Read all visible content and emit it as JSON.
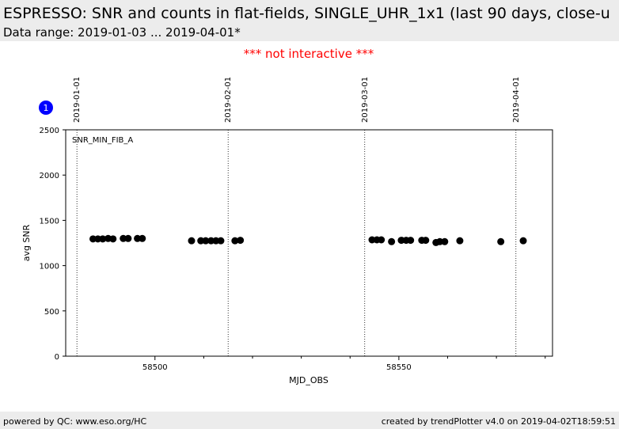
{
  "chart_data": {
    "type": "scatter",
    "title": "ESPRESSO: SNR and counts in flat-fields, SINGLE_UHR_1x1 (last 90 days, close-u",
    "subtitle": "Data range: 2019-01-03 ... 2019-04-01*",
    "notice": "*** not interactive ***",
    "badge": "1",
    "annotation": "SNR_MIN_FIB_A",
    "x_label": "MJD_OBS",
    "y_label": "avg SNR",
    "color": "#000000",
    "x": [
      58487.3,
      58488.3,
      58489.3,
      58490.4,
      58491.4,
      58493.5,
      58494.5,
      58496.4,
      58497.4,
      58507.5,
      58509.4,
      58510.4,
      58511.5,
      58512.5,
      58513.5,
      58516.4,
      58517.5,
      58544.5,
      58545.5,
      58546.4,
      58548.5,
      58550.5,
      58551.5,
      58552.4,
      58554.7,
      58555.5,
      58557.6,
      58558.4,
      58559.4,
      58562.5,
      58570.9,
      58575.5
    ],
    "values": [
      1295,
      1295,
      1295,
      1300,
      1295,
      1300,
      1300,
      1300,
      1300,
      1275,
      1275,
      1275,
      1275,
      1275,
      1275,
      1275,
      1280,
      1285,
      1285,
      1285,
      1265,
      1280,
      1280,
      1280,
      1280,
      1280,
      1255,
      1265,
      1265,
      1275,
      1265,
      1275
    ],
    "xlim": [
      58481.7,
      58581.5
    ],
    "ylim": [
      0,
      2500
    ],
    "xticks": [
      58500,
      58550
    ],
    "xminorticks": [
      58510,
      58520,
      58530,
      58540,
      58560,
      58570,
      58580
    ],
    "yticks": [
      0,
      500,
      1000,
      1500,
      2000,
      2500
    ],
    "date_lines": [
      {
        "value": 58484,
        "label": "2019-01-01"
      },
      {
        "value": 58515,
        "label": "2019-02-01"
      },
      {
        "value": 58543,
        "label": "2019-03-01"
      },
      {
        "value": 58574,
        "label": "2019-04-01"
      }
    ],
    "footer_left": "powered by QC: www.eso.org/HC",
    "footer_right": "created by trendPlotter v4.0 on 2019-04-02T18:59:51"
  }
}
